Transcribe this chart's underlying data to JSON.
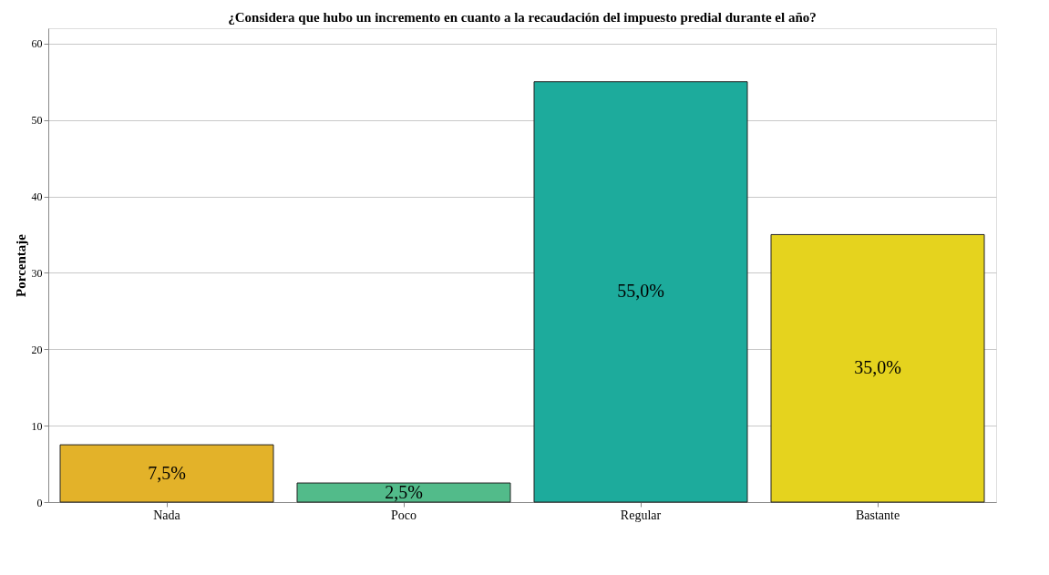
{
  "chart_data": {
    "type": "bar",
    "title": "¿Considera que hubo un incremento en cuanto a la recaudación del impuesto predial durante el año?",
    "ylabel": "Porcentaje",
    "categories": [
      "Nada",
      "Poco",
      "Regular",
      "Bastante"
    ],
    "values": [
      7.5,
      2.5,
      55.0,
      35.0
    ],
    "colors": [
      "#e3b229",
      "#52bb8a",
      "#1dab9c",
      "#e5d31e"
    ],
    "value_labels": [
      "7,5%",
      "2,5%",
      "55,0%",
      "35,0%"
    ],
    "ylim": [
      0,
      62
    ],
    "yticks": [
      0,
      10,
      20,
      30,
      40,
      50,
      60
    ],
    "grid": "y"
  }
}
